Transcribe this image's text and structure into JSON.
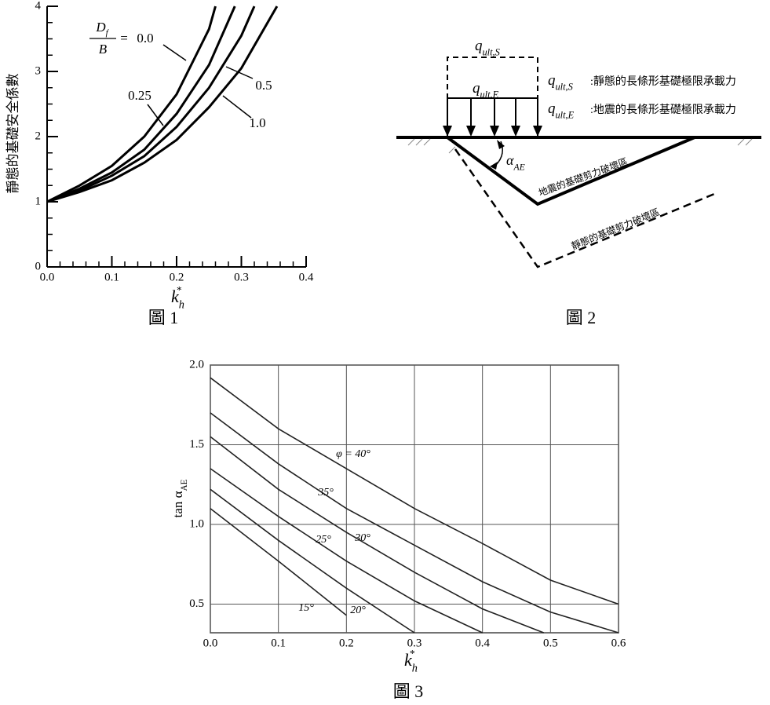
{
  "chart_data": [
    {
      "type": "line",
      "caption": "圖 1",
      "ylabel": "靜態的基礎安全係數",
      "xlabel": {
        "base": "k",
        "sub": "h",
        "sup": "*"
      },
      "xlim": [
        0,
        0.4
      ],
      "xticks": [
        {
          "value": 0,
          "label": "0.0"
        },
        0.1,
        0.2,
        0.3,
        0.4
      ],
      "ylim": [
        0,
        4
      ],
      "yticks": [
        0,
        1,
        2,
        3,
        4
      ],
      "grid": false,
      "ratio_label": {
        "numerator": "D",
        "numerator_sub": "f",
        "denominator": "B",
        "equals": "="
      },
      "series": [
        {
          "name": "0.0",
          "color": "#000000",
          "x": [
            0,
            0.05,
            0.1,
            0.15,
            0.2,
            0.25,
            0.26
          ],
          "values": [
            1,
            1.25,
            1.55,
            2.0,
            2.65,
            3.65,
            4
          ]
        },
        {
          "name": "0.25",
          "color": "#000000",
          "x": [
            0,
            0.05,
            0.1,
            0.15,
            0.2,
            0.25,
            0.29
          ],
          "values": [
            1,
            1.2,
            1.45,
            1.8,
            2.35,
            3.1,
            4
          ]
        },
        {
          "name": "0.5",
          "color": "#000000",
          "x": [
            0,
            0.05,
            0.1,
            0.15,
            0.2,
            0.25,
            0.3,
            0.32
          ],
          "values": [
            1,
            1.17,
            1.4,
            1.7,
            2.15,
            2.75,
            3.55,
            4
          ]
        },
        {
          "name": "1.0",
          "color": "#000000",
          "x": [
            0,
            0.05,
            0.1,
            0.15,
            0.2,
            0.25,
            0.3,
            0.355
          ],
          "values": [
            1,
            1.15,
            1.33,
            1.6,
            1.95,
            2.45,
            3.05,
            4
          ]
        }
      ]
    },
    {
      "type": "line",
      "caption": "圖 3",
      "ylabel": {
        "base": "tan α",
        "sub": "AE"
      },
      "xlabel": {
        "base": "k",
        "sub": "h",
        "sup": "*"
      },
      "xlim": [
        0,
        0.6
      ],
      "xticks": [
        {
          "value": 0,
          "label": "0.0"
        },
        0.1,
        0.2,
        0.3,
        0.4,
        0.5,
        0.6
      ],
      "ylim": [
        0.32,
        2.0
      ],
      "yticks": [
        0.5,
        {
          "value": 1,
          "label": "1.0"
        },
        1.5,
        {
          "value": 2,
          "label": "2.0"
        }
      ],
      "grid": true,
      "series": [
        {
          "name": "φ = 40°",
          "color": "#222222",
          "x": [
            0,
            0.1,
            0.2,
            0.3,
            0.4,
            0.5,
            0.6
          ],
          "values": [
            1.92,
            1.6,
            1.35,
            1.1,
            0.88,
            0.65,
            0.5
          ]
        },
        {
          "name": "35°",
          "color": "#222222",
          "x": [
            0,
            0.1,
            0.2,
            0.3,
            0.4,
            0.5,
            0.6
          ],
          "values": [
            1.7,
            1.38,
            1.1,
            0.87,
            0.64,
            0.45,
            0.32
          ]
        },
        {
          "name": "30°",
          "color": "#222222",
          "x": [
            0,
            0.1,
            0.2,
            0.3,
            0.4,
            0.49
          ],
          "values": [
            1.55,
            1.22,
            0.95,
            0.7,
            0.47,
            0.32
          ]
        },
        {
          "name": "25°",
          "color": "#222222",
          "x": [
            0,
            0.1,
            0.2,
            0.3,
            0.4
          ],
          "values": [
            1.35,
            1.05,
            0.77,
            0.52,
            0.32
          ]
        },
        {
          "name": "20°",
          "color": "#222222",
          "x": [
            0,
            0.1,
            0.2,
            0.3
          ],
          "values": [
            1.22,
            0.9,
            0.6,
            0.32
          ]
        },
        {
          "name": "15°",
          "color": "#222222",
          "x": [
            0,
            0.1,
            0.2
          ],
          "values": [
            1.1,
            0.77,
            0.43
          ]
        }
      ]
    }
  ],
  "diagram": {
    "caption": "圖 2",
    "q_static": {
      "base": "q",
      "sub": "ult,S"
    },
    "q_seismic": {
      "base": "q",
      "sub": "ult,E"
    },
    "legend": [
      {
        "symbol": {
          "base": "q",
          "sub": "ult,S"
        },
        "text": ":靜態的長條形基礎極限承載力"
      },
      {
        "symbol": {
          "base": "q",
          "sub": "ult,E"
        },
        "text": ":地震的長條形基礎極限承載力"
      }
    ],
    "angle": {
      "base": "α",
      "sub": "AE"
    },
    "zones": [
      "地震的基礎剪力破壞區",
      "靜態的基礎剪力破壞區"
    ]
  }
}
